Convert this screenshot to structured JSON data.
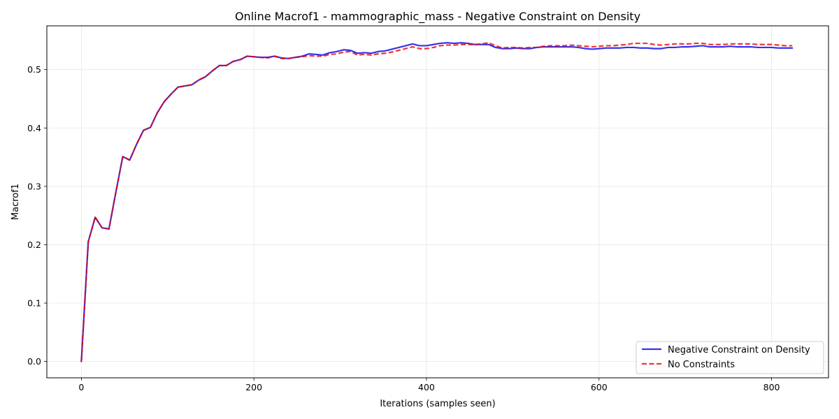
{
  "chart_data": {
    "type": "line",
    "title": "Online Macrof1 - mammographic_mass - Negative Constraint on Density",
    "xlabel": "Iterations (samples seen)",
    "ylabel": "Macrof1",
    "xlim": [
      -40,
      866
    ],
    "ylim": [
      -0.028,
      0.575
    ],
    "xticks": [
      0,
      200,
      400,
      600,
      800
    ],
    "xtick_labels": [
      "0",
      "200",
      "400",
      "600",
      "800"
    ],
    "yticks": [
      0.0,
      0.1,
      0.2,
      0.3,
      0.4,
      0.5
    ],
    "ytick_labels": [
      "0.0",
      "0.1",
      "0.2",
      "0.3",
      "0.4",
      "0.5"
    ],
    "grid": true,
    "legend_position": "lower-right",
    "series": [
      {
        "name": "Negative Constraint on Density",
        "color": "#0000ee",
        "linestyle": "solid",
        "x": [
          0,
          8,
          16,
          24,
          32,
          40,
          48,
          56,
          64,
          72,
          80,
          88,
          96,
          104,
          112,
          120,
          128,
          136,
          144,
          152,
          160,
          168,
          176,
          184,
          192,
          200,
          208,
          216,
          224,
          232,
          240,
          248,
          256,
          264,
          272,
          280,
          288,
          296,
          304,
          312,
          320,
          328,
          336,
          344,
          352,
          360,
          368,
          376,
          384,
          392,
          400,
          408,
          416,
          424,
          432,
          440,
          448,
          456,
          464,
          472,
          480,
          488,
          496,
          504,
          512,
          520,
          528,
          536,
          544,
          552,
          560,
          568,
          576,
          584,
          592,
          600,
          608,
          616,
          624,
          632,
          640,
          648,
          656,
          664,
          672,
          680,
          688,
          696,
          704,
          712,
          720,
          728,
          736,
          744,
          752,
          760,
          768,
          776,
          784,
          792,
          800,
          808,
          816,
          824
        ],
        "y": [
          0.0,
          0.205,
          0.247,
          0.229,
          0.227,
          0.29,
          0.351,
          0.345,
          0.372,
          0.396,
          0.401,
          0.426,
          0.445,
          0.458,
          0.47,
          0.472,
          0.474,
          0.482,
          0.488,
          0.498,
          0.507,
          0.507,
          0.514,
          0.517,
          0.523,
          0.522,
          0.521,
          0.521,
          0.523,
          0.52,
          0.519,
          0.521,
          0.523,
          0.527,
          0.526,
          0.525,
          0.529,
          0.531,
          0.534,
          0.533,
          0.528,
          0.529,
          0.528,
          0.531,
          0.532,
          0.535,
          0.538,
          0.541,
          0.544,
          0.541,
          0.541,
          0.543,
          0.545,
          0.546,
          0.545,
          0.546,
          0.545,
          0.543,
          0.543,
          0.543,
          0.538,
          0.536,
          0.536,
          0.537,
          0.536,
          0.536,
          0.538,
          0.539,
          0.539,
          0.539,
          0.539,
          0.539,
          0.538,
          0.536,
          0.535,
          0.536,
          0.537,
          0.537,
          0.537,
          0.538,
          0.538,
          0.537,
          0.537,
          0.536,
          0.536,
          0.538,
          0.538,
          0.539,
          0.539,
          0.54,
          0.541,
          0.539,
          0.539,
          0.539,
          0.54,
          0.539,
          0.539,
          0.539,
          0.538,
          0.538,
          0.538,
          0.537,
          0.537,
          0.537
        ]
      },
      {
        "name": "No Constraints",
        "color": "#ee0000",
        "linestyle": "dashed",
        "x": [
          0,
          8,
          16,
          24,
          32,
          40,
          48,
          56,
          64,
          72,
          80,
          88,
          96,
          104,
          112,
          120,
          128,
          136,
          144,
          152,
          160,
          168,
          176,
          184,
          192,
          200,
          208,
          216,
          224,
          232,
          240,
          248,
          256,
          264,
          272,
          280,
          288,
          296,
          304,
          312,
          320,
          328,
          336,
          344,
          352,
          360,
          368,
          376,
          384,
          392,
          400,
          408,
          416,
          424,
          432,
          440,
          448,
          456,
          464,
          472,
          480,
          488,
          496,
          504,
          512,
          520,
          528,
          536,
          544,
          552,
          560,
          568,
          576,
          584,
          592,
          600,
          608,
          616,
          624,
          632,
          640,
          648,
          656,
          664,
          672,
          680,
          688,
          696,
          704,
          712,
          720,
          728,
          736,
          744,
          752,
          760,
          768,
          776,
          784,
          792,
          800,
          808,
          816,
          824
        ],
        "y": [
          0.0,
          0.205,
          0.247,
          0.229,
          0.227,
          0.29,
          0.351,
          0.345,
          0.372,
          0.396,
          0.401,
          0.426,
          0.445,
          0.458,
          0.47,
          0.472,
          0.474,
          0.482,
          0.488,
          0.498,
          0.507,
          0.507,
          0.514,
          0.517,
          0.523,
          0.522,
          0.521,
          0.52,
          0.523,
          0.519,
          0.519,
          0.521,
          0.522,
          0.524,
          0.523,
          0.523,
          0.526,
          0.527,
          0.53,
          0.531,
          0.525,
          0.526,
          0.525,
          0.527,
          0.528,
          0.53,
          0.533,
          0.536,
          0.539,
          0.536,
          0.536,
          0.538,
          0.541,
          0.542,
          0.542,
          0.543,
          0.543,
          0.543,
          0.544,
          0.546,
          0.541,
          0.537,
          0.538,
          0.538,
          0.537,
          0.538,
          0.538,
          0.54,
          0.541,
          0.541,
          0.541,
          0.542,
          0.541,
          0.54,
          0.539,
          0.54,
          0.541,
          0.541,
          0.542,
          0.543,
          0.545,
          0.545,
          0.545,
          0.543,
          0.542,
          0.543,
          0.544,
          0.544,
          0.544,
          0.545,
          0.545,
          0.543,
          0.543,
          0.543,
          0.544,
          0.544,
          0.544,
          0.544,
          0.543,
          0.543,
          0.543,
          0.542,
          0.541,
          0.541
        ]
      }
    ]
  }
}
